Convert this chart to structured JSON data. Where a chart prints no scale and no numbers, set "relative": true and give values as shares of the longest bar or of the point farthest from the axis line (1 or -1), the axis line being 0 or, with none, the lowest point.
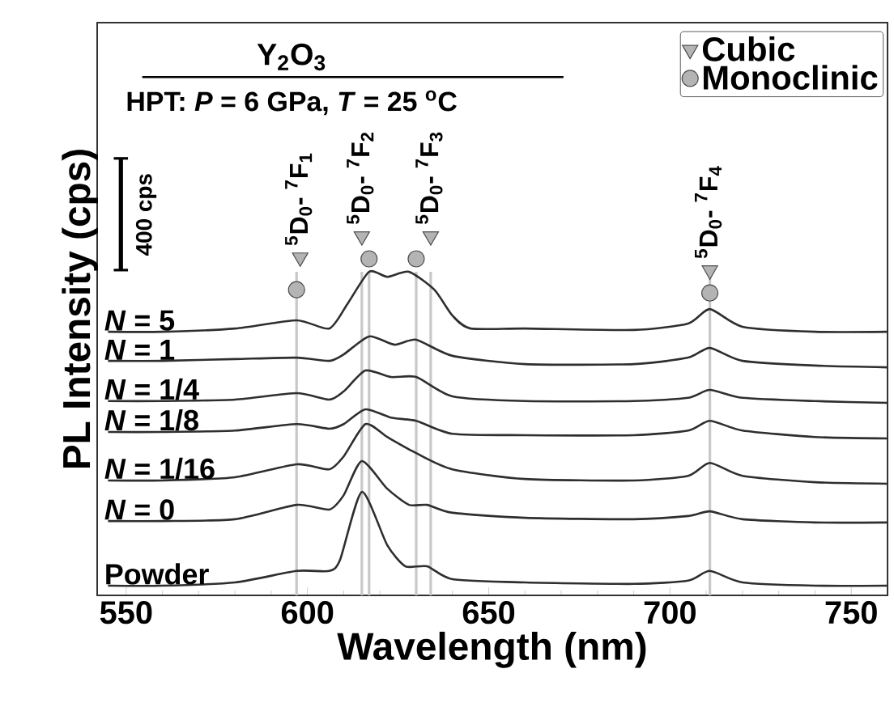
{
  "chart_data": {
    "type": "line",
    "relative": true,
    "title": "Y$_{2}$O$_{3}$",
    "subtitle": "HPT: *P* = 6 GPa, *T* = 25 $^{o}$C",
    "xlabel": "Wavelength (nm)",
    "ylabel": "PL Intensity (cps)",
    "xlim": [
      542,
      760
    ],
    "xticks": [
      550,
      600,
      650,
      700,
      750
    ],
    "legend": "top right",
    "series": [
      {
        "name": "*N* = 5",
        "color": "#2e2e2e",
        "x": [
          545,
          560,
          580,
          597,
          606,
          611,
          617,
          622,
          628,
          635,
          640,
          645,
          660,
          690,
          705,
          711,
          720,
          740,
          760
        ],
        "values": [
          0.734,
          0.734,
          0.743,
          0.766,
          0.743,
          0.811,
          0.901,
          0.887,
          0.901,
          0.851,
          0.779,
          0.743,
          0.743,
          0.739,
          0.757,
          0.797,
          0.748,
          0.734,
          0.734
        ]
      },
      {
        "name": "*N* = 1",
        "color": "#2e2e2e",
        "x": [
          545,
          560,
          580,
          597,
          606,
          610,
          617,
          624,
          630,
          640,
          660,
          690,
          705,
          711,
          720,
          740,
          760
        ],
        "values": [
          0.653,
          0.653,
          0.658,
          0.662,
          0.653,
          0.671,
          0.721,
          0.698,
          0.712,
          0.667,
          0.644,
          0.644,
          0.662,
          0.689,
          0.653,
          0.64,
          0.635
        ]
      },
      {
        "name": "*N* = 1/4",
        "color": "#2e2e2e",
        "x": [
          545,
          560,
          580,
          597,
          606,
          610,
          616,
          623,
          630,
          640,
          660,
          690,
          705,
          711,
          720,
          740,
          760
        ],
        "values": [
          0.541,
          0.541,
          0.545,
          0.563,
          0.545,
          0.568,
          0.626,
          0.608,
          0.608,
          0.554,
          0.541,
          0.541,
          0.55,
          0.572,
          0.55,
          0.541,
          0.536
        ]
      },
      {
        "name": "*N* = 1/8",
        "color": "#2e2e2e",
        "x": [
          545,
          560,
          580,
          597,
          606,
          610,
          616,
          623,
          630,
          640,
          660,
          690,
          705,
          711,
          720,
          740,
          760
        ],
        "values": [
          0.455,
          0.455,
          0.459,
          0.477,
          0.464,
          0.477,
          0.518,
          0.495,
          0.486,
          0.45,
          0.446,
          0.446,
          0.459,
          0.486,
          0.459,
          0.441,
          0.437
        ]
      },
      {
        "name": "*N* = 1/16",
        "color": "#2e2e2e",
        "x": [
          545,
          560,
          580,
          597,
          606,
          610,
          616,
          622,
          630,
          640,
          660,
          690,
          705,
          711,
          720,
          740,
          760
        ],
        "values": [
          0.32,
          0.32,
          0.329,
          0.365,
          0.351,
          0.387,
          0.477,
          0.441,
          0.396,
          0.351,
          0.324,
          0.32,
          0.333,
          0.369,
          0.333,
          0.315,
          0.311
        ]
      },
      {
        "name": "*N* = 0",
        "color": "#2e2e2e",
        "x": [
          545,
          560,
          580,
          597,
          606,
          610,
          615,
          622,
          628,
          633,
          640,
          660,
          690,
          705,
          711,
          720,
          740,
          760
        ],
        "values": [
          0.207,
          0.207,
          0.212,
          0.252,
          0.239,
          0.279,
          0.374,
          0.297,
          0.252,
          0.252,
          0.23,
          0.216,
          0.212,
          0.221,
          0.234,
          0.212,
          0.203,
          0.203
        ]
      },
      {
        "name": "Powder",
        "color": "#2e2e2e",
        "x": [
          545,
          560,
          580,
          597,
          606,
          609,
          615,
          622,
          627,
          633,
          640,
          660,
          690,
          705,
          711,
          720,
          740,
          760
        ],
        "values": [
          0.027,
          0.027,
          0.036,
          0.068,
          0.068,
          0.099,
          0.288,
          0.14,
          0.081,
          0.081,
          0.045,
          0.036,
          0.032,
          0.041,
          0.068,
          0.036,
          0.027,
          0.027
        ]
      },
      {
        "name": "Cubic",
        "type": "scatter",
        "marker": "triangle",
        "color": "#b4b4b4",
        "x": [
          598,
          615,
          634,
          711
        ],
        "values": [
          0.941,
          1.0,
          1.0,
          0.905
        ]
      },
      {
        "name": "Monoclinic",
        "type": "scatter",
        "marker": "circle",
        "color": "#b4b4b4",
        "x": [
          597,
          617,
          630,
          711
        ],
        "values": [
          0.851,
          0.937,
          0.937,
          0.842
        ]
      }
    ],
    "ref_lines": [
      {
        "axis": "x",
        "value": 597,
        "color": "#c8c8c8"
      },
      {
        "axis": "x",
        "value": 615,
        "color": "#c8c8c8"
      },
      {
        "axis": "x",
        "value": 617,
        "color": "#c8c8c8"
      },
      {
        "axis": "x",
        "value": 630,
        "color": "#c8c8c8"
      },
      {
        "axis": "x",
        "value": 634,
        "color": "#c8c8c8"
      },
      {
        "axis": "x",
        "value": 711,
        "color": "#c8c8c8"
      }
    ],
    "annotations": [
      {
        "text": "$^{5}$D$_{0}$- $^{7}$F$_{1}$",
        "x": 598,
        "y": 0.941
      },
      {
        "text": "$^{5}$D$_{0}$- $^{7}$F$_{2}$",
        "x": 615,
        "y": 1.0
      },
      {
        "text": "$^{5}$D$_{0}$- $^{7}$F$_{3}$",
        "x": 634,
        "y": 1.0
      },
      {
        "text": "$^{5}$D$_{0}$- $^{7}$F$_{4}$",
        "x": 711,
        "y": 0.905
      },
      "400 cps"
    ]
  }
}
